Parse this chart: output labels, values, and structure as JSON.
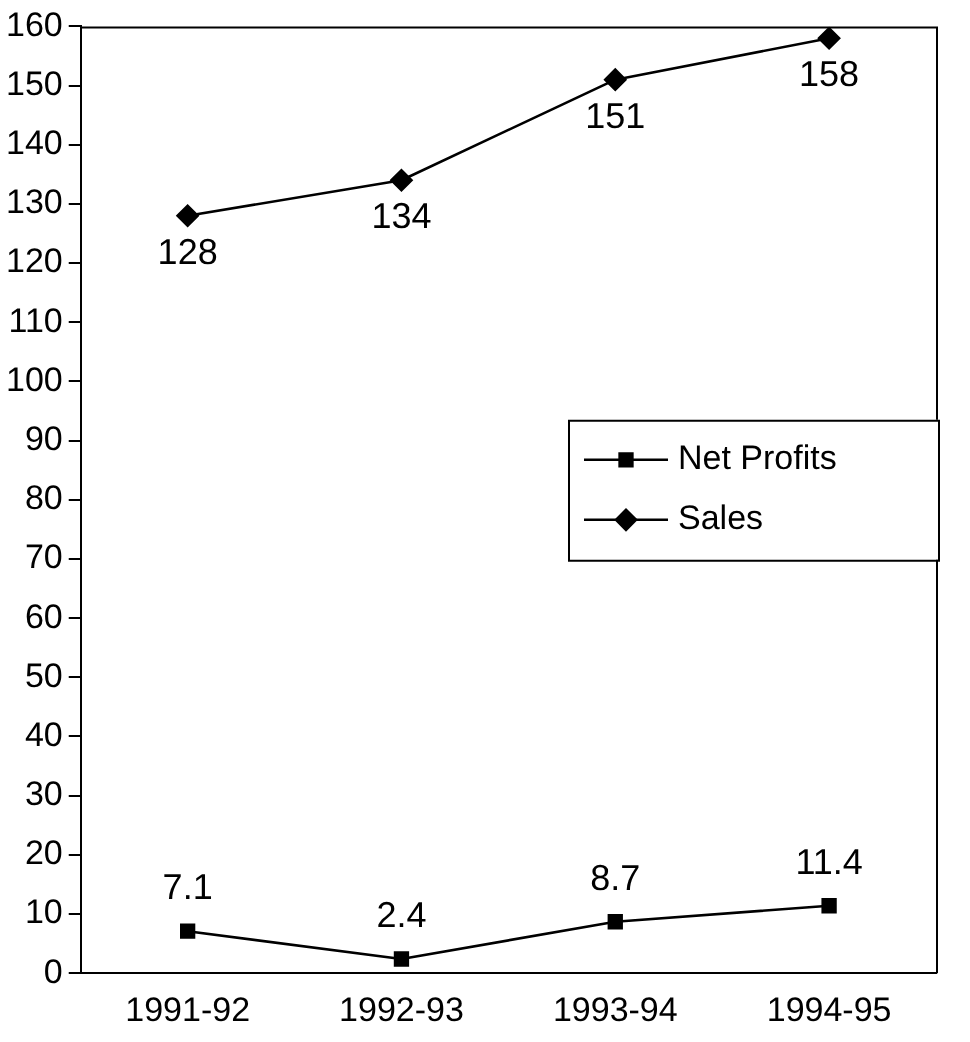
{
  "chart_data": {
    "type": "line",
    "categories": [
      "1991-92",
      "1992-93",
      "1993-94",
      "1994-95"
    ],
    "series": [
      {
        "name": "Net Profits",
        "color": "#000000",
        "marker": "square",
        "values": [
          7.1,
          2.4,
          8.7,
          11.4
        ]
      },
      {
        "name": "Sales",
        "color": "#000000",
        "marker": "diamond",
        "values": [
          128,
          134,
          151,
          158
        ]
      }
    ],
    "ylim": [
      0,
      160
    ],
    "yticks": [
      0,
      10,
      20,
      30,
      40,
      50,
      60,
      70,
      80,
      90,
      100,
      110,
      120,
      130,
      140,
      150,
      160
    ],
    "data_labels": true,
    "legend": "right",
    "grid": false
  }
}
